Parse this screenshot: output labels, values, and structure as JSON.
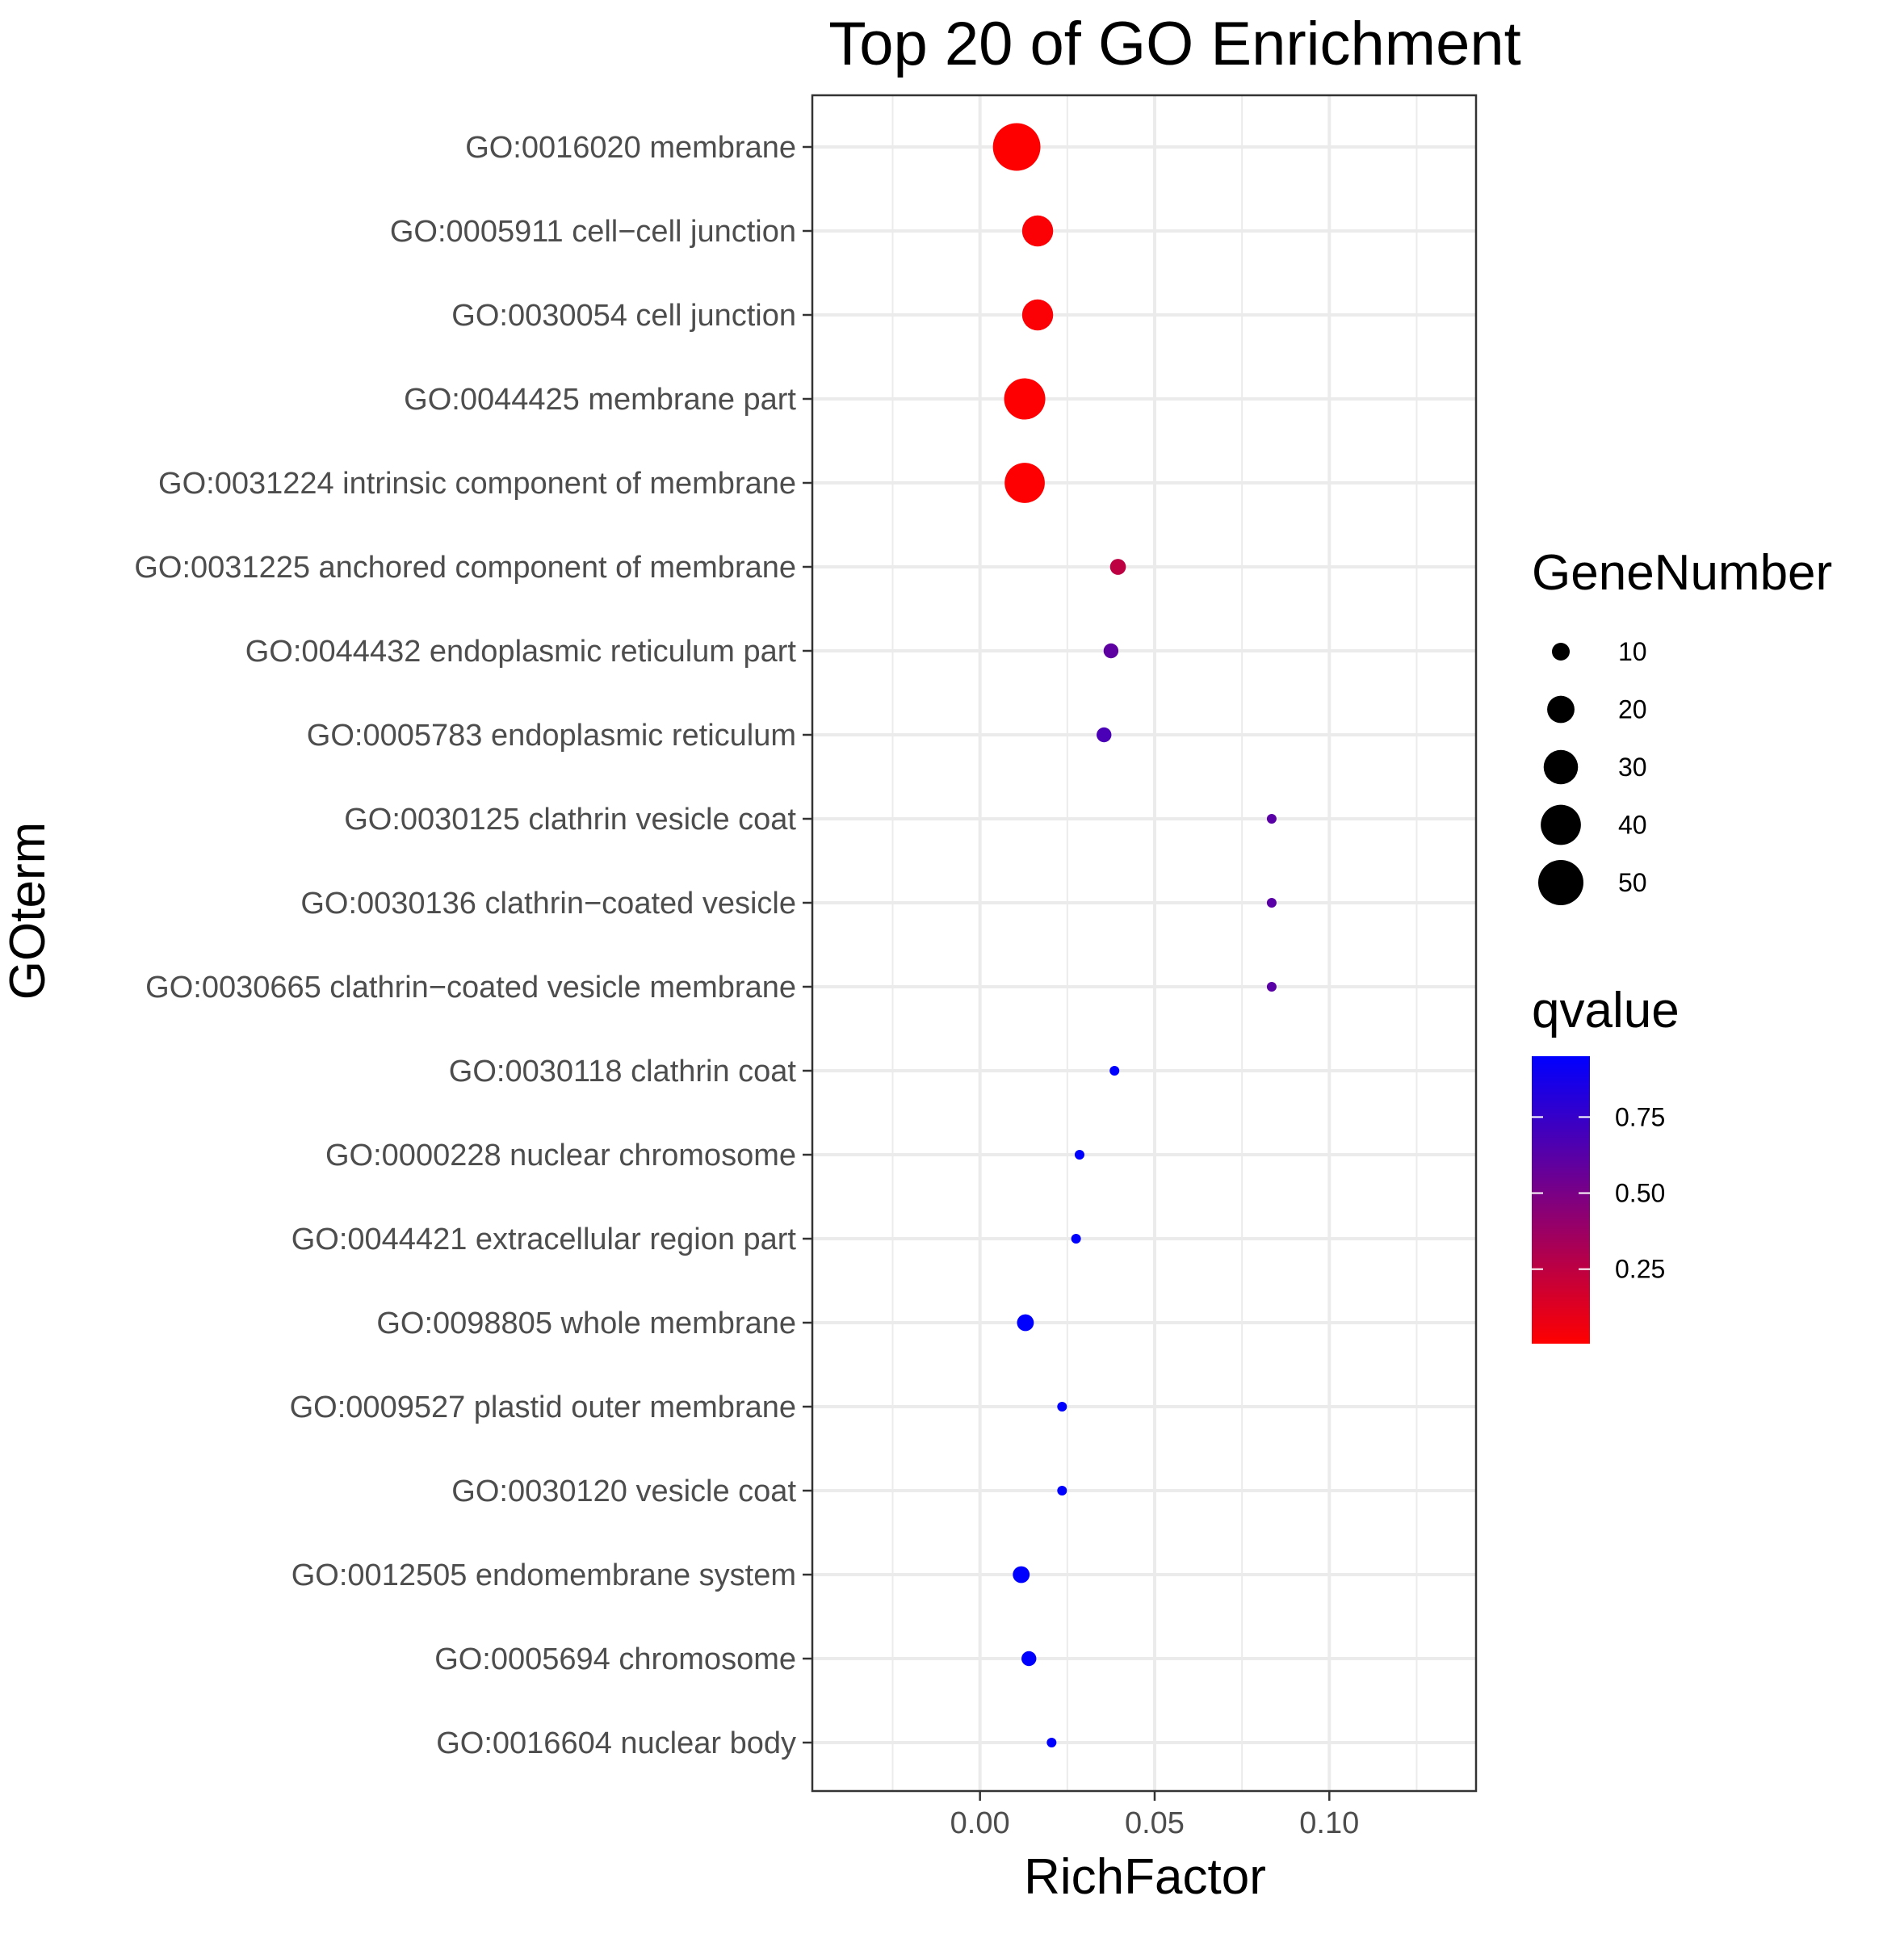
{
  "chart_data": {
    "type": "scatter",
    "title": "Top 20 of GO Enrichment",
    "xlabel": "RichFactor",
    "ylabel": "GOterm",
    "xlim": [
      -0.048,
      0.142
    ],
    "x_ticks": [
      0.0,
      0.05,
      0.1
    ],
    "x_tick_labels": [
      "0.00",
      "0.05",
      "0.10"
    ],
    "grid": true,
    "categories": [
      "GO:0016020 membrane",
      "GO:0005911 cell−cell junction",
      "GO:0030054 cell junction",
      "GO:0044425 membrane part",
      "GO:0031224 intrinsic component of membrane",
      "GO:0031225 anchored component of membrane",
      "GO:0044432 endoplasmic reticulum part",
      "GO:0005783 endoplasmic reticulum",
      "GO:0030125 clathrin vesicle coat",
      "GO:0030136 clathrin−coated vesicle",
      "GO:0030665 clathrin−coated vesicle membrane",
      "GO:0030118 clathrin coat",
      "GO:0000228 nuclear chromosome",
      "GO:0044421 extracellular region part",
      "GO:0098805 whole membrane",
      "GO:0009527 plastid outer membrane",
      "GO:0030120 vesicle coat",
      "GO:0012505 endomembrane system",
      "GO:0005694 chromosome",
      "GO:0016604 nuclear body"
    ],
    "points": [
      {
        "term": "GO:0016020 membrane",
        "rich_factor": 0.0105,
        "gene_number": 55,
        "qvalue": 0.005
      },
      {
        "term": "GO:0005911 cell−cell junction",
        "rich_factor": 0.0165,
        "gene_number": 25,
        "qvalue": 0.02
      },
      {
        "term": "GO:0030054 cell junction",
        "rich_factor": 0.0165,
        "gene_number": 25,
        "qvalue": 0.02
      },
      {
        "term": "GO:0044425 membrane part",
        "rich_factor": 0.0128,
        "gene_number": 42,
        "qvalue": 0.01
      },
      {
        "term": "GO:0031224 intrinsic component of membrane",
        "rich_factor": 0.0128,
        "gene_number": 40,
        "qvalue": 0.01
      },
      {
        "term": "GO:0031225 anchored component of membrane",
        "rich_factor": 0.0395,
        "gene_number": 8,
        "qvalue": 0.25
      },
      {
        "term": "GO:0044432 endoplasmic reticulum part",
        "rich_factor": 0.0375,
        "gene_number": 7,
        "qvalue": 0.6
      },
      {
        "term": "GO:0005783 endoplasmic reticulum",
        "rich_factor": 0.0355,
        "gene_number": 7,
        "qvalue": 0.68
      },
      {
        "term": "GO:0030125 clathrin vesicle coat",
        "rich_factor": 0.0835,
        "gene_number": 2,
        "qvalue": 0.62
      },
      {
        "term": "GO:0030136 clathrin−coated vesicle",
        "rich_factor": 0.0835,
        "gene_number": 2,
        "qvalue": 0.62
      },
      {
        "term": "GO:0030665 clathrin−coated vesicle membrane",
        "rich_factor": 0.0835,
        "gene_number": 2,
        "qvalue": 0.62
      },
      {
        "term": "GO:0030118 clathrin coat",
        "rich_factor": 0.0385,
        "gene_number": 2,
        "qvalue": 0.95
      },
      {
        "term": "GO:0000228 nuclear chromosome",
        "rich_factor": 0.0285,
        "gene_number": 2,
        "qvalue": 0.95
      },
      {
        "term": "GO:0044421 extracellular region part",
        "rich_factor": 0.0275,
        "gene_number": 2,
        "qvalue": 0.95
      },
      {
        "term": "GO:0098805 whole membrane",
        "rich_factor": 0.013,
        "gene_number": 9,
        "qvalue": 0.95
      },
      {
        "term": "GO:0009527 plastid outer membrane",
        "rich_factor": 0.0235,
        "gene_number": 2,
        "qvalue": 0.95
      },
      {
        "term": "GO:0030120 vesicle coat",
        "rich_factor": 0.0235,
        "gene_number": 2,
        "qvalue": 0.95
      },
      {
        "term": "GO:0012505 endomembrane system",
        "rich_factor": 0.0118,
        "gene_number": 9,
        "qvalue": 0.95
      },
      {
        "term": "GO:0005694 chromosome",
        "rich_factor": 0.014,
        "gene_number": 7,
        "qvalue": 0.95
      },
      {
        "term": "GO:0016604 nuclear body",
        "rich_factor": 0.0205,
        "gene_number": 2,
        "qvalue": 0.95
      }
    ],
    "legend_size": {
      "title": "GeneNumber",
      "values": [
        10,
        20,
        30,
        40,
        50
      ],
      "labels": [
        "10",
        "20",
        "30",
        "40",
        "50"
      ]
    },
    "legend_color": {
      "title": "qvalue",
      "low_color": "#ff0000",
      "high_color": "#0000ff",
      "range": [
        0.005,
        0.95
      ],
      "ticks": [
        0.25,
        0.5,
        0.75
      ],
      "tick_labels": [
        "0.25",
        "0.50",
        "0.75"
      ]
    },
    "legend_placement": "right"
  }
}
